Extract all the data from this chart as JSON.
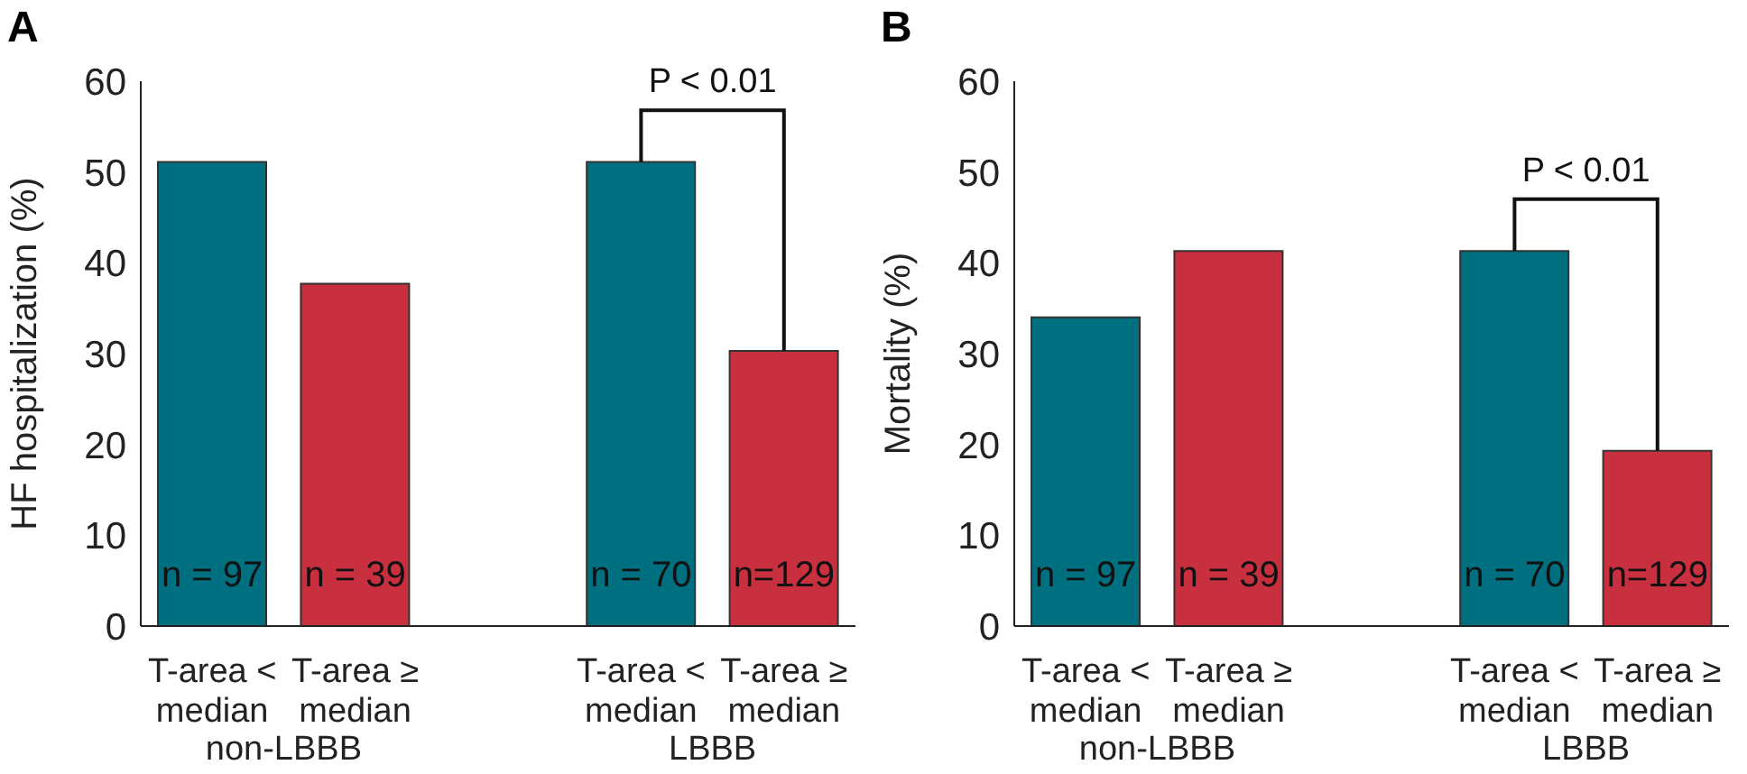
{
  "chart_data": [
    {
      "type": "bar",
      "title": "A",
      "ylabel": "HF hospitalization (%)",
      "categories": [
        "T-area < median",
        "T-area ≥ median",
        null,
        "T-area < median",
        "T-area ≥ median"
      ],
      "values": [
        51.1,
        37.7,
        null,
        51.1,
        30.3
      ],
      "colors": [
        "#006f80",
        "#c8303f",
        null,
        "#006f80",
        "#c8303f"
      ],
      "ylim": [
        0,
        60
      ],
      "yticks": [
        0,
        10,
        20,
        30,
        40,
        50,
        60
      ],
      "grid": false,
      "legend": false,
      "annotations": [
        "P < 0.01",
        "n = 97",
        "n = 39",
        "n = 70",
        "n=129",
        "non-LBBB",
        "LBBB"
      ]
    },
    {
      "type": "bar",
      "title": "B",
      "ylabel": "Mortality (%)",
      "categories": [
        "T-area < median",
        "T-area ≥ median",
        null,
        "T-area < median",
        "T-area ≥ median"
      ],
      "values": [
        34.0,
        41.3,
        null,
        41.3,
        19.3
      ],
      "colors": [
        "#006f80",
        "#c8303f",
        null,
        "#006f80",
        "#c8303f"
      ],
      "ylim": [
        0,
        60
      ],
      "yticks": [
        0,
        10,
        20,
        30,
        40,
        50,
        60
      ],
      "grid": false,
      "legend": false,
      "annotations": [
        "P < 0.01",
        "n = 97",
        "n = 39",
        "n = 70",
        "n=129",
        "non-LBBB",
        "LBBB"
      ]
    }
  ]
}
